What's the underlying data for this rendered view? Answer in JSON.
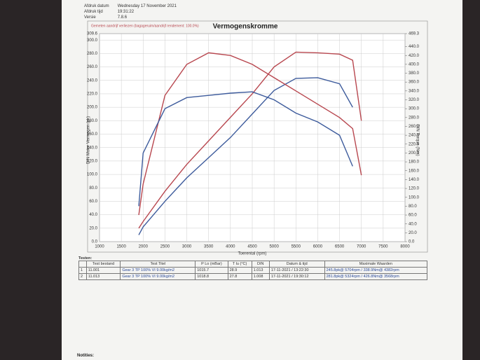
{
  "header": {
    "rows": [
      [
        "Afdruk datum",
        "Wednesday 17 November 2021"
      ],
      [
        "Afdruk tijd",
        "19:31:22"
      ],
      [
        "Versie",
        "7.8.6"
      ]
    ]
  },
  "chart_data": {
    "type": "line",
    "title": "Vermogenskromme",
    "note": "Gemeten aandrijf verliezen (bagageruim/aandrijf rendement: 100.0%)",
    "x_label": "Toerental (rpm)",
    "y_label": "DIN Motor Vermogen (pk)",
    "y2_label": "DIN Torque (Nm)",
    "grid": true,
    "x": [
      1900,
      2000,
      2500,
      3000,
      3500,
      4000,
      4500,
      5000,
      5500,
      6000,
      6500,
      6800,
      7000
    ],
    "series": [
      {
        "name": "11.013 P",
        "color": "#b8474f",
        "values": [
          20,
          30,
          75,
          115,
          150,
          185,
          220,
          260,
          282,
          281,
          279,
          270,
          180
        ]
      },
      {
        "name": "11.001 P",
        "color": "#3d5b9c",
        "values": [
          10,
          22,
          60,
          95,
          125,
          155,
          190,
          225,
          243,
          244,
          235,
          200,
          null
        ]
      },
      {
        "name": "11.013 T",
        "color": "#b8474f",
        "axis": "y2",
        "values": [
          60,
          130,
          330,
          400,
          426,
          420,
          400,
          370,
          340,
          310,
          280,
          255,
          150
        ]
      },
      {
        "name": "11.001 T",
        "color": "#3d5b9c",
        "axis": "y2",
        "values": [
          80,
          200,
          300,
          325,
          330,
          335,
          338,
          320,
          290,
          270,
          240,
          170,
          null
        ]
      }
    ],
    "xlim": [
      1000,
      8000
    ],
    "xticks": [
      1000,
      1500,
      2000,
      2500,
      3000,
      3500,
      4000,
      4500,
      5000,
      5500,
      6000,
      6500,
      7000,
      7500,
      8000
    ],
    "ylim": [
      0,
      309.6
    ],
    "yticks": [
      {
        "value": 0,
        "label": "0.0"
      },
      {
        "value": 20,
        "label": "20.0"
      },
      {
        "value": 40,
        "label": "40.0"
      },
      {
        "value": 60,
        "label": "60.0"
      },
      {
        "value": 80,
        "label": "80.0"
      },
      {
        "value": 100,
        "label": "100.0"
      },
      {
        "value": 120,
        "label": "120.0"
      },
      {
        "value": 140,
        "label": "140.0"
      },
      {
        "value": 160,
        "label": "160.0"
      },
      {
        "value": 180,
        "label": "180.0"
      },
      {
        "value": 200,
        "label": "200.0"
      },
      {
        "value": 220,
        "label": "220.0"
      },
      {
        "value": 240,
        "label": "240.0"
      },
      {
        "value": 260,
        "label": "260.0"
      },
      {
        "value": 280,
        "label": "280.0"
      },
      {
        "value": 300,
        "label": "300.0"
      },
      {
        "value": 309.6,
        "label": "309.6"
      }
    ],
    "y2lim": [
      0,
      469.3
    ],
    "y2ticks": [
      {
        "value": 0,
        "label": "0.0"
      },
      {
        "value": 20,
        "label": "20.0"
      },
      {
        "value": 40,
        "label": "40.0"
      },
      {
        "value": 60,
        "label": "60.0"
      },
      {
        "value": 80,
        "label": "80.0"
      },
      {
        "value": 100,
        "label": "100.0"
      },
      {
        "value": 120,
        "label": "120.0"
      },
      {
        "value": 140,
        "label": "140.0"
      },
      {
        "value": 160,
        "label": "160.0"
      },
      {
        "value": 180,
        "label": "180.0"
      },
      {
        "value": 200,
        "label": "200.0"
      },
      {
        "value": 220,
        "label": "220.0"
      },
      {
        "value": 240,
        "label": "240.0"
      },
      {
        "value": 260,
        "label": "260.0"
      },
      {
        "value": 280,
        "label": "280.0"
      },
      {
        "value": 300,
        "label": "300.0"
      },
      {
        "value": 320,
        "label": "320.0"
      },
      {
        "value": 340,
        "label": "340.0"
      },
      {
        "value": 360,
        "label": "360.0"
      },
      {
        "value": 380,
        "label": "380.0"
      },
      {
        "value": 400,
        "label": "400.0"
      },
      {
        "value": 420,
        "label": "420.0"
      },
      {
        "value": 440,
        "label": "440.0"
      },
      {
        "value": 469.3,
        "label": "469.3"
      }
    ]
  },
  "table": {
    "title": "Testen:",
    "columns": [
      "Test bestand",
      "Test Titel",
      "P Lo (mBar)",
      "T lu (°C)",
      "DIN",
      "Datum & tijd",
      "Maximale Waarden"
    ],
    "rows": [
      [
        "1",
        "11.001",
        "Gear 3 TP 100% VI 9.00kg/m2",
        "1015.7",
        "28.9",
        "1.013",
        "17-11-2021 / 13:22:30",
        "245.8pk@ 5704rpm / 338.9Nm@ 4382rpm"
      ],
      [
        "2",
        "11.013",
        "Gear 3 TP 100% VI 9.00kg/m2",
        "1018.8",
        "27.8",
        "1.008",
        "17-11-2021 / 19:30:12",
        "281.8pk@ 5324rpm / 426.8Nm@ 3568rpm"
      ]
    ]
  },
  "footer": {
    "notes": "Notities:"
  }
}
